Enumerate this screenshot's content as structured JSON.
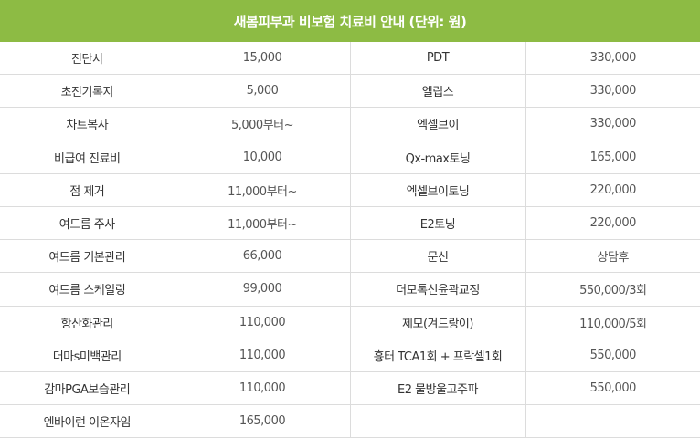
{
  "title": "새봄피부과 비보험 치료비 안내 (단위: 원)",
  "colors": {
    "header_bg": "#8dbb44",
    "header_text": "#ffffff",
    "border": "#dcdcdc"
  },
  "rows": [
    {
      "left_name": "진단서",
      "left_price": "15,000",
      "right_name": "PDT",
      "right_price": "330,000"
    },
    {
      "left_name": "초진기록지",
      "left_price": "5,000",
      "right_name": "엘립스",
      "right_price": "330,000"
    },
    {
      "left_name": "차트복사",
      "left_price": "5,000부터~",
      "right_name": "엑셀브이",
      "right_price": "330,000"
    },
    {
      "left_name": "비급여 진료비",
      "left_price": "10,000",
      "right_name": "Qx-max토닝",
      "right_price": "165,000"
    },
    {
      "left_name": "점 제거",
      "left_price": "11,000부터~",
      "right_name": "엑셀브이토닝",
      "right_price": "220,000"
    },
    {
      "left_name": "여드름 주사",
      "left_price": "11,000부터~",
      "right_name": "E2토닝",
      "right_price": "220,000"
    },
    {
      "left_name": "여드름 기본관리",
      "left_price": "66,000",
      "right_name": "문신",
      "right_price": "상담후"
    },
    {
      "left_name": "여드름 스케일링",
      "left_price": "99,000",
      "right_name": "더모톡신윤곽교정",
      "right_price": "550,000/3회"
    },
    {
      "left_name": "항산화관리",
      "left_price": "110,000",
      "right_name": "제모(겨드랑이)",
      "right_price": "110,000/5회"
    },
    {
      "left_name": "더마s미백관리",
      "left_price": "110,000",
      "right_name": "흉터 TCA1회 + 프락셀1회",
      "right_price": "550,000"
    },
    {
      "left_name": "감마PGA보습관리",
      "left_price": "110,000",
      "right_name": "E2 물방울고주파",
      "right_price": "550,000"
    },
    {
      "left_name": "엔바이런 이온자임",
      "left_price": "165,000",
      "right_name": "",
      "right_price": ""
    }
  ]
}
